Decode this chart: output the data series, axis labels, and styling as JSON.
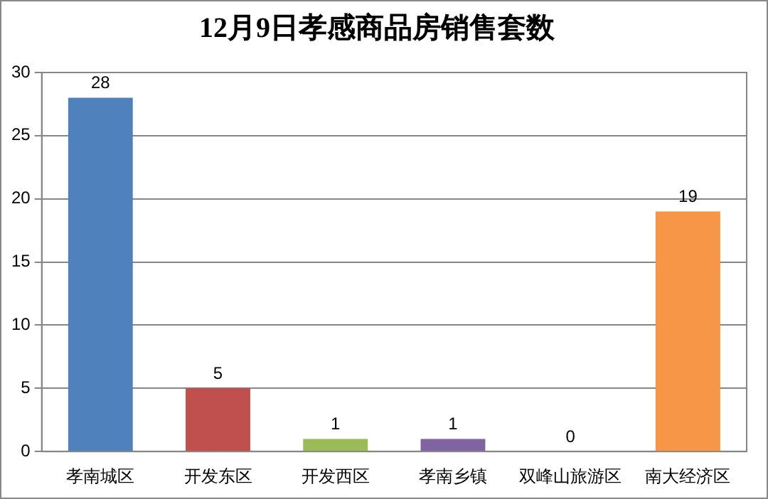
{
  "chart_data": {
    "type": "bar",
    "title": "12月9日孝感商品房销售套数",
    "categories": [
      "孝南城区",
      "开发东区",
      "开发西区",
      "孝南乡镇",
      "双峰山旅游区",
      "南大经济区"
    ],
    "values": [
      28,
      5,
      1,
      1,
      0,
      19
    ],
    "colors": [
      "#4f81bd",
      "#c0504d",
      "#9bbb59",
      "#8064a2",
      "#4bacc6",
      "#f79646"
    ],
    "ylim": [
      0,
      30
    ],
    "yticks": [
      0,
      5,
      10,
      15,
      20,
      25,
      30
    ],
    "grid": "y",
    "data_labels": true,
    "legend": false
  }
}
